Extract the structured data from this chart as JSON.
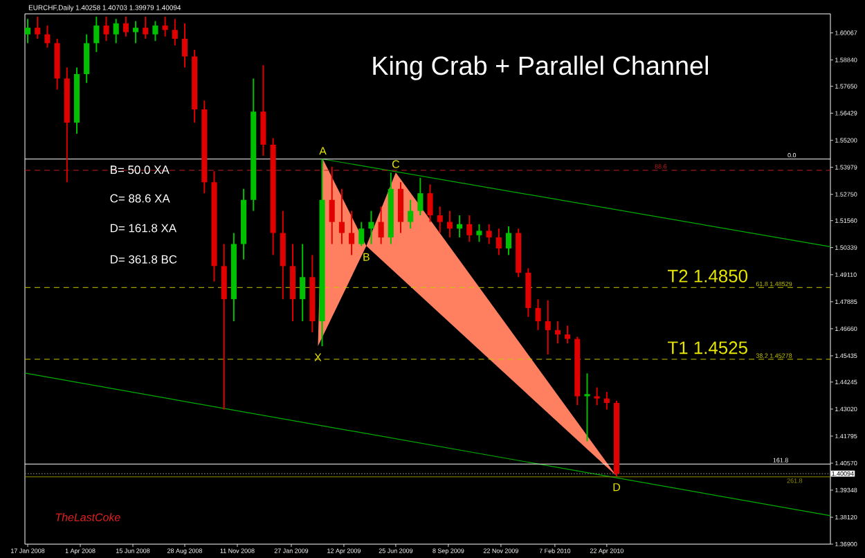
{
  "chart_data": {
    "type": "candlestick",
    "title": "King Crab + Parallel Channel",
    "x": [
      "2008-01-17",
      "2008-01-31",
      "2008-02-14",
      "2008-02-28",
      "2008-03-13",
      "2008-03-27",
      "2008-04-10",
      "2008-04-24",
      "2008-05-08",
      "2008-05-22",
      "2008-06-05",
      "2008-06-19",
      "2008-07-03",
      "2008-07-17",
      "2008-07-31",
      "2008-08-14",
      "2008-08-28",
      "2008-09-11",
      "2008-09-25",
      "2008-10-09",
      "2008-10-23",
      "2008-11-06",
      "2008-11-20",
      "2008-12-04",
      "2008-12-18",
      "2009-01-01",
      "2009-01-15",
      "2009-01-29",
      "2009-02-12",
      "2009-02-26",
      "2009-03-12",
      "2009-03-26",
      "2009-04-09",
      "2009-04-23",
      "2009-05-07",
      "2009-05-21",
      "2009-06-04",
      "2009-06-18",
      "2009-07-02",
      "2009-07-16",
      "2009-07-30",
      "2009-08-13",
      "2009-08-27",
      "2009-09-10",
      "2009-09-24",
      "2009-10-08",
      "2009-10-22",
      "2009-11-05",
      "2009-11-19",
      "2009-12-03",
      "2009-12-17",
      "2009-12-31",
      "2010-01-14",
      "2010-01-28",
      "2010-02-11",
      "2010-02-25",
      "2010-03-11",
      "2010-03-25",
      "2010-04-08",
      "2010-04-22",
      "2010-05-06"
    ],
    "ohlc": [
      [
        1.6,
        1.607,
        1.596,
        1.603
      ],
      [
        1.603,
        1.608,
        1.598,
        1.6
      ],
      [
        1.6,
        1.604,
        1.594,
        1.596
      ],
      [
        1.596,
        1.598,
        1.575,
        1.58
      ],
      [
        1.58,
        1.585,
        1.533,
        1.56
      ],
      [
        1.56,
        1.585,
        1.555,
        1.582
      ],
      [
        1.582,
        1.6,
        1.578,
        1.596
      ],
      [
        1.596,
        1.608,
        1.592,
        1.604
      ],
      [
        1.604,
        1.608,
        1.597,
        1.6
      ],
      [
        1.6,
        1.607,
        1.596,
        1.605
      ],
      [
        1.605,
        1.608,
        1.599,
        1.601
      ],
      [
        1.601,
        1.606,
        1.596,
        1.603
      ],
      [
        1.603,
        1.608,
        1.598,
        1.6
      ],
      [
        1.6,
        1.606,
        1.597,
        1.604
      ],
      [
        1.604,
        1.608,
        1.599,
        1.602
      ],
      [
        1.602,
        1.607,
        1.595,
        1.598
      ],
      [
        1.598,
        1.605,
        1.585,
        1.59
      ],
      [
        1.59,
        1.593,
        1.56,
        1.566
      ],
      [
        1.566,
        1.57,
        1.528,
        1.533
      ],
      [
        1.533,
        1.538,
        1.488,
        1.495
      ],
      [
        1.495,
        1.505,
        1.43,
        1.48
      ],
      [
        1.48,
        1.51,
        1.47,
        1.505
      ],
      [
        1.505,
        1.53,
        1.498,
        1.525
      ],
      [
        1.525,
        1.58,
        1.52,
        1.565
      ],
      [
        1.565,
        1.586,
        1.545,
        1.55
      ],
      [
        1.55,
        1.553,
        1.5,
        1.51
      ],
      [
        1.51,
        1.52,
        1.48,
        1.495
      ],
      [
        1.495,
        1.505,
        1.47,
        1.48
      ],
      [
        1.48,
        1.505,
        1.47,
        1.49
      ],
      [
        1.49,
        1.5,
        1.465,
        1.47
      ],
      [
        1.47,
        1.5435,
        1.4587,
        1.525
      ],
      [
        1.525,
        1.54,
        1.505,
        1.515
      ],
      [
        1.515,
        1.53,
        1.505,
        1.51
      ],
      [
        1.51,
        1.52,
        1.5,
        1.505
      ],
      [
        1.505,
        1.515,
        1.5041,
        1.512
      ],
      [
        1.512,
        1.52,
        1.505,
        1.515
      ],
      [
        1.515,
        1.522,
        1.505,
        1.508
      ],
      [
        1.508,
        1.5374,
        1.505,
        1.53
      ],
      [
        1.53,
        1.533,
        1.51,
        1.515
      ],
      [
        1.515,
        1.525,
        1.512,
        1.52
      ],
      [
        1.52,
        1.535,
        1.518,
        1.528
      ],
      [
        1.528,
        1.532,
        1.515,
        1.518
      ],
      [
        1.518,
        1.522,
        1.51,
        1.515
      ],
      [
        1.515,
        1.52,
        1.508,
        1.512
      ],
      [
        1.512,
        1.518,
        1.508,
        1.514
      ],
      [
        1.514,
        1.518,
        1.506,
        1.509
      ],
      [
        1.509,
        1.514,
        1.506,
        1.511
      ],
      [
        1.511,
        1.514,
        1.505,
        1.508
      ],
      [
        1.508,
        1.512,
        1.5,
        1.503
      ],
      [
        1.503,
        1.513,
        1.5,
        1.51
      ],
      [
        1.51,
        1.512,
        1.49,
        1.492
      ],
      [
        1.492,
        1.494,
        1.472,
        1.476
      ],
      [
        1.476,
        1.48,
        1.466,
        1.47
      ],
      [
        1.47,
        1.4795,
        1.455,
        1.466
      ],
      [
        1.466,
        1.47,
        1.46,
        1.464
      ],
      [
        1.464,
        1.468,
        1.46,
        1.462
      ],
      [
        1.462,
        1.463,
        1.432,
        1.436
      ],
      [
        1.436,
        1.4464,
        1.4156,
        1.437
      ],
      [
        1.436,
        1.44,
        1.432,
        1.435
      ],
      [
        1.435,
        1.438,
        1.43,
        1.433
      ],
      [
        1.433,
        1.434,
        1.39979,
        1.40094
      ]
    ],
    "series": [
      {
        "type": "line",
        "x": [
          "2009-03-13",
          "2011-03-07"
        ],
        "values": [
          1.5435,
          1.5038
        ],
        "color": "#00b000"
      },
      {
        "type": "line",
        "x": [
          "2008-01-13",
          "2011-03-07"
        ],
        "values": [
          1.4465,
          1.3819
        ],
        "color": "#00b000"
      },
      {
        "type": "area",
        "x": [
          "2009-03-06",
          "2009-03-13",
          "2009-05-14",
          "2009-06-25",
          "2010-05-06"
        ],
        "values": [
          1.4587,
          1.5435,
          1.5041,
          1.5374,
          1.3998
        ],
        "color": "#ff8060"
      }
    ],
    "xlim": [
      "2008-01-13",
      "2011-03-07"
    ],
    "ylim": [
      1.369,
      1.6093
    ],
    "xticks": [
      {
        "value": "2008-01-17",
        "label": "17 Jan 2008"
      },
      {
        "value": "2008-04-01",
        "label": "1 Apr 2008"
      },
      {
        "value": "2008-06-15",
        "label": "15 Jun 2008"
      },
      {
        "value": "2008-08-28",
        "label": "28 Aug 2008"
      },
      {
        "value": "2008-11-11",
        "label": "11 Nov 2008"
      },
      {
        "value": "2009-01-27",
        "label": "27 Jan 2009"
      },
      {
        "value": "2009-04-12",
        "label": "12 Apr 2009"
      },
      {
        "value": "2009-06-25",
        "label": "25 Jun 2009"
      },
      {
        "value": "2009-09-08",
        "label": "8 Sep 2009"
      },
      {
        "value": "2009-11-22",
        "label": "22 Nov 2009"
      },
      {
        "value": "2010-02-07",
        "label": "7 Feb 2010"
      },
      {
        "value": "2010-04-22",
        "label": "22 Apr 2010"
      }
    ],
    "yticks": [
      {
        "value": 1.60067,
        "label": "1.60067"
      },
      {
        "value": 1.5884,
        "label": "1.58840"
      },
      {
        "value": 1.5765,
        "label": "1.57650"
      },
      {
        "value": 1.56429,
        "label": "1.56429"
      },
      {
        "value": 1.552,
        "label": "1.55200"
      },
      {
        "value": 1.53979,
        "label": "1.53979"
      },
      {
        "value": 1.5275,
        "label": "1.52750"
      },
      {
        "value": 1.5156,
        "label": "1.51560"
      },
      {
        "value": 1.50339,
        "label": "1.50339"
      },
      {
        "value": 1.4911,
        "label": "1.49110"
      },
      {
        "value": 1.47885,
        "label": "1.47885"
      },
      {
        "value": 1.4666,
        "label": "1.46660"
      },
      {
        "value": 1.45435,
        "label": "1.45435"
      },
      {
        "value": 1.44245,
        "label": "1.44245"
      },
      {
        "value": 1.4302,
        "label": "1.43020"
      },
      {
        "value": 1.41795,
        "label": "1.41795"
      },
      {
        "value": 1.4057,
        "label": "1.40570"
      },
      {
        "value": 1.39348,
        "label": "1.39348"
      },
      {
        "value": 1.3812,
        "label": "1.38120"
      },
      {
        "value": 1.369,
        "label": "1.36900"
      }
    ],
    "ref_lines": [
      {
        "axis": "y",
        "value": 1.5435,
        "color": "#ffffff",
        "line_style": "solid"
      },
      {
        "axis": "y",
        "value": 1.5384,
        "color": "#c02020",
        "line_style": "dashed"
      },
      {
        "axis": "y",
        "value": 1.48529,
        "label": "61.8  1.48529",
        "color": "#c8c800",
        "line_style": "dashed"
      },
      {
        "axis": "y",
        "value": 1.45278,
        "label": "38.2  1.45278",
        "color": "#c8c800",
        "line_style": "dashed"
      },
      {
        "axis": "y",
        "value": 1.4053,
        "color": "#ffffff",
        "line_style": "solid"
      },
      {
        "axis": "y",
        "value": 1.3995,
        "color": "#909000",
        "line_style": "solid"
      },
      {
        "axis": "y",
        "value": 1.40094,
        "label": "1.40094",
        "color": "#a0a0a0",
        "line_style": "dotted"
      }
    ],
    "annotations": [
      "EURCHF,Daily  1.40258 1.40703 1.39979 1.40094",
      "B= 50.0 XA",
      "C= 88.6 XA",
      "D= 161.8 XA",
      "D= 361.8 BC",
      "TheLastCoke",
      {
        "text": "X",
        "x": "2009-03-06",
        "y": 1.4587
      },
      {
        "text": "A",
        "x": "2009-03-13",
        "y": 1.5435
      },
      {
        "text": "B",
        "x": "2009-05-14",
        "y": 1.5041
      },
      {
        "text": "C",
        "x": "2009-06-25",
        "y": 1.5374
      },
      {
        "text": "D",
        "x": "2010-05-06",
        "y": 1.3998
      },
      {
        "text": "T2 1.4850",
        "x": "2010-09-13",
        "y": 1.485
      },
      {
        "text": "T1 1.4525",
        "x": "2010-09-13",
        "y": 1.4525
      },
      {
        "text": "0.0",
        "x": "2011-01-11",
        "y": 1.5435
      },
      {
        "text": "88.6",
        "x": "2010-07-08",
        "y": 1.5384
      },
      {
        "text": "161.8",
        "x": "2010-12-26",
        "y": 1.4053
      },
      {
        "text": "261.8",
        "x": "2011-01-15",
        "y": 1.3995
      }
    ]
  }
}
